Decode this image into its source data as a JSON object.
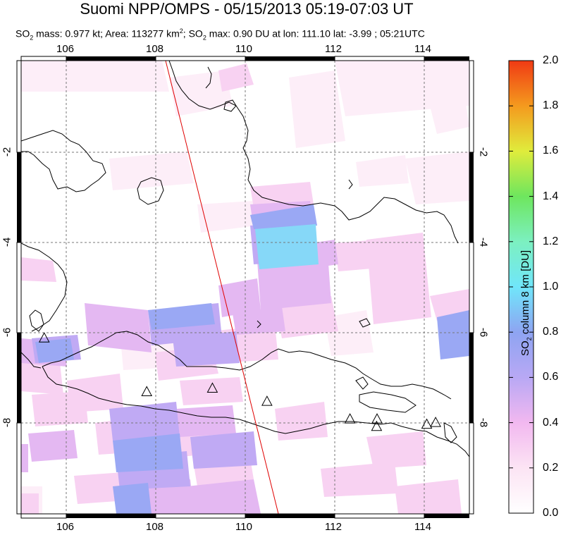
{
  "title": "Suomi NPP/OMPS - 05/15/2013 05:19-07:03 UT",
  "subtitle": {
    "prefix": "SO",
    "sub1": "2",
    "mass_text": " mass: 0.977 kt; Area: 113277 km",
    "sup": "2",
    "mid": "; SO",
    "sub2": "2",
    "rest": " max: 0.90 DU at lon: 111.10 lat: -3.99 ; 05:21UTC"
  },
  "map": {
    "lon_labels": [
      "106",
      "108",
      "110",
      "112",
      "114"
    ],
    "lat_labels": [
      "-2",
      "-4",
      "-6",
      "-8"
    ],
    "lon_range": [
      104.9,
      115.0
    ],
    "lat_range": [
      0.2,
      -10.1
    ],
    "volcano_icon": "triangle-outline-icon",
    "volcanoes": [
      {
        "lon": 105.42,
        "lat": -6.1
      },
      {
        "lon": 107.73,
        "lat": -7.32
      },
      {
        "lon": 109.21,
        "lat": -7.24
      },
      {
        "lon": 110.44,
        "lat": -7.54
      },
      {
        "lon": 112.31,
        "lat": -7.94
      },
      {
        "lon": 112.92,
        "lat": -7.94
      },
      {
        "lon": 112.91,
        "lat": -8.11
      },
      {
        "lon": 114.04,
        "lat": -8.06
      },
      {
        "lon": 114.24,
        "lat": -8.02
      }
    ],
    "line_color": "#e00000"
  },
  "colorbar": {
    "label_main": "SO",
    "label_sub": "2",
    "label_rest": " column 8 km [DU]",
    "ticks": [
      "0.0",
      "0.2",
      "0.4",
      "0.6",
      "0.8",
      "1.0",
      "1.2",
      "1.4",
      "1.6",
      "1.8",
      "2.0"
    ],
    "min": 0.0,
    "max": 2.0
  }
}
